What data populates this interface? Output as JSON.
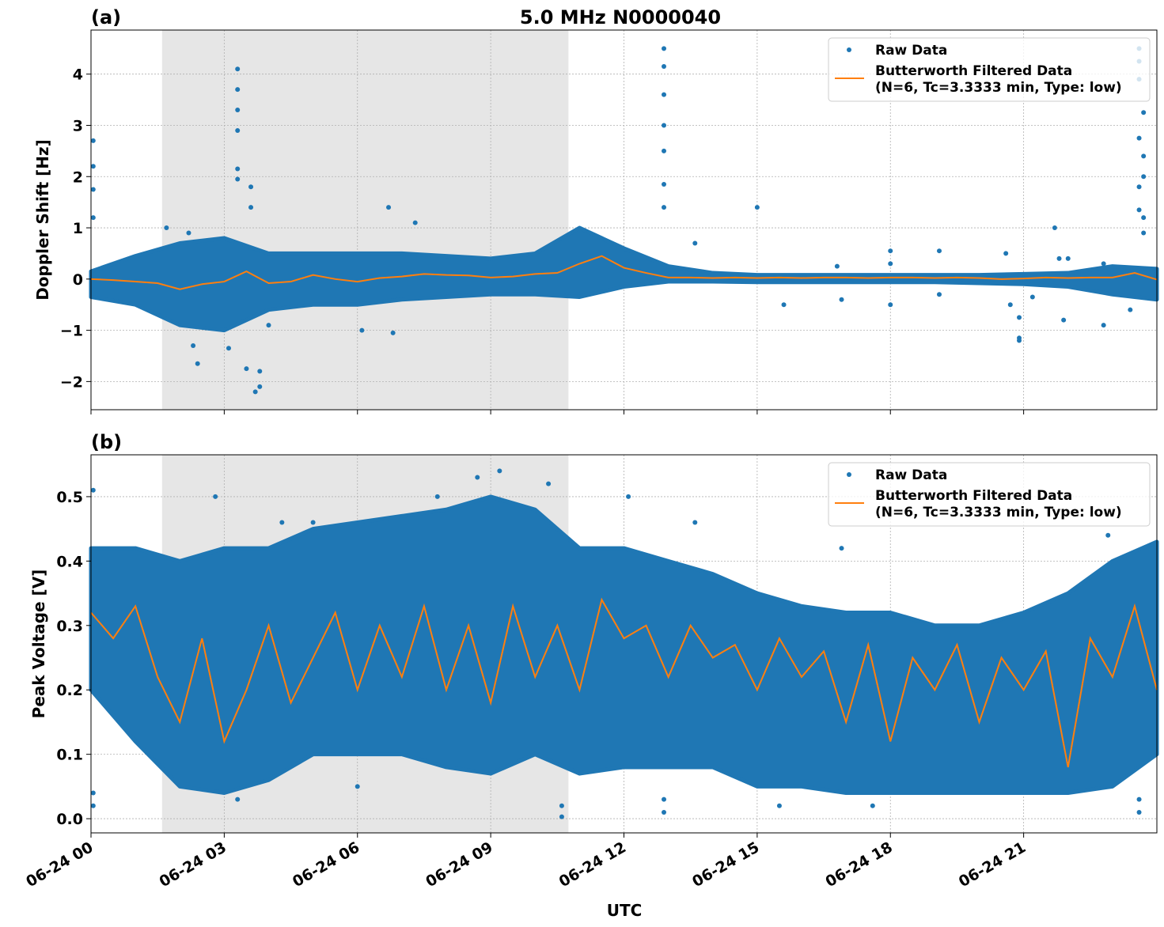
{
  "chart_data": [
    {
      "type": "scatter",
      "panel_label": "(a)",
      "title": "5.0 MHz N0000040",
      "xlabel": "",
      "ylabel": "Doppler Shift [Hz]",
      "xlim_hours": [
        0,
        24
      ],
      "ylim": [
        -2.55,
        4.86
      ],
      "yticks": [
        -2,
        -1,
        0,
        1,
        2,
        3,
        4
      ],
      "ytick_labels": [
        "−2",
        "−1",
        "0",
        "1",
        "2",
        "3",
        "4"
      ],
      "grid": true,
      "shaded_interval_hours": [
        1.6,
        10.75
      ],
      "legend": {
        "position": "top-right",
        "entries": [
          "Raw Data",
          "Butterworth Filtered Data",
          "(N=6, Tc=3.3333 min, Type: low)"
        ]
      },
      "raw_envelope": {
        "hours": [
          0,
          1,
          2,
          3,
          4,
          5,
          6,
          7,
          8,
          9,
          10,
          11,
          12,
          13,
          14,
          15,
          16,
          17,
          18,
          19,
          20,
          21,
          22,
          23,
          24
        ],
        "low": [
          -0.35,
          -0.5,
          -0.9,
          -1.0,
          -0.6,
          -0.5,
          -0.5,
          -0.4,
          -0.35,
          -0.3,
          -0.3,
          -0.35,
          -0.15,
          -0.05,
          -0.05,
          -0.06,
          -0.06,
          -0.06,
          -0.06,
          -0.06,
          -0.08,
          -0.1,
          -0.15,
          -0.3,
          -0.4
        ],
        "high": [
          0.15,
          0.45,
          0.7,
          0.8,
          0.5,
          0.5,
          0.5,
          0.5,
          0.45,
          0.4,
          0.5,
          1.0,
          0.6,
          0.25,
          0.12,
          0.08,
          0.08,
          0.08,
          0.08,
          0.08,
          0.08,
          0.1,
          0.12,
          0.25,
          0.2
        ]
      },
      "raw_outliers": [
        [
          0.05,
          2.7
        ],
        [
          0.05,
          2.2
        ],
        [
          0.05,
          1.75
        ],
        [
          0.05,
          1.2
        ],
        [
          3.3,
          4.1
        ],
        [
          3.3,
          3.7
        ],
        [
          3.3,
          3.3
        ],
        [
          3.3,
          2.9
        ],
        [
          3.3,
          2.15
        ],
        [
          3.3,
          1.95
        ],
        [
          3.6,
          1.8
        ],
        [
          3.6,
          1.4
        ],
        [
          2.4,
          -1.65
        ],
        [
          3.5,
          -1.75
        ],
        [
          3.7,
          -2.2
        ],
        [
          3.8,
          -2.1
        ],
        [
          3.8,
          -1.8
        ],
        [
          12.9,
          4.5
        ],
        [
          12.9,
          4.15
        ],
        [
          12.9,
          3.6
        ],
        [
          12.9,
          3.0
        ],
        [
          12.9,
          2.5
        ],
        [
          12.9,
          1.85
        ],
        [
          12.9,
          1.4
        ],
        [
          15,
          1.4
        ],
        [
          6.7,
          1.4
        ],
        [
          7.3,
          1.1
        ],
        [
          23.6,
          4.5
        ],
        [
          23.6,
          4.25
        ],
        [
          23.6,
          3.9
        ],
        [
          23.7,
          3.25
        ],
        [
          23.6,
          2.75
        ],
        [
          23.7,
          2.4
        ],
        [
          23.7,
          2.0
        ],
        [
          23.6,
          1.8
        ],
        [
          23.6,
          1.35
        ],
        [
          23.7,
          1.2
        ],
        [
          23.7,
          0.9
        ],
        [
          20.9,
          -0.75
        ],
        [
          20.9,
          -1.2
        ],
        [
          20.9,
          -1.15
        ],
        [
          22.8,
          0.3
        ],
        [
          22.8,
          -0.9
        ],
        [
          21.7,
          1.0
        ],
        [
          21.8,
          0.4
        ],
        [
          18,
          0.55
        ],
        [
          18,
          0.3
        ],
        [
          18,
          -0.5
        ],
        [
          19.1,
          0.55
        ],
        [
          19.1,
          -0.3
        ],
        [
          16.8,
          0.25
        ],
        [
          16.9,
          -0.4
        ],
        [
          15.6,
          -0.5
        ],
        [
          20.6,
          0.5
        ],
        [
          20.7,
          -0.5
        ],
        [
          21.2,
          -0.35
        ],
        [
          13.6,
          0.7
        ],
        [
          6.1,
          -1.0
        ],
        [
          6.8,
          -1.05
        ],
        [
          22,
          0.4
        ],
        [
          21.9,
          -0.8
        ],
        [
          23.4,
          -0.6
        ],
        [
          2.3,
          -1.3
        ],
        [
          3.1,
          -1.35
        ],
        [
          4.0,
          -0.9
        ],
        [
          1.7,
          1.0
        ],
        [
          2.2,
          0.9
        ]
      ],
      "filtered": {
        "hours": [
          0,
          0.5,
          1,
          1.5,
          2,
          2.5,
          3,
          3.5,
          4,
          4.5,
          5,
          5.5,
          6,
          6.5,
          7,
          7.5,
          8,
          8.5,
          9,
          9.5,
          10,
          10.5,
          11,
          11.5,
          12,
          12.5,
          13,
          13.5,
          14,
          14.5,
          15,
          15.5,
          16,
          16.5,
          17,
          17.5,
          18,
          18.5,
          19,
          19.5,
          20,
          20.5,
          21,
          21.5,
          22,
          22.5,
          23,
          23.5,
          24
        ],
        "values": [
          0,
          -0.02,
          -0.05,
          -0.08,
          -0.2,
          -0.1,
          -0.05,
          0.15,
          -0.08,
          -0.05,
          0.08,
          0.0,
          -0.05,
          0.02,
          0.05,
          0.1,
          0.08,
          0.07,
          0.03,
          0.05,
          0.1,
          0.12,
          0.3,
          0.45,
          0.22,
          0.12,
          0.03,
          0.03,
          0.02,
          0.03,
          0.02,
          0.03,
          0.02,
          0.03,
          0.03,
          0.02,
          0.03,
          0.03,
          0.02,
          0.03,
          0.02,
          0.0,
          0.01,
          0.03,
          0.02,
          0.03,
          0.03,
          0.12,
          -0.01
        ]
      }
    },
    {
      "type": "scatter",
      "panel_label": "(b)",
      "xlabel": "UTC",
      "ylabel": "Peak Voltage [V]",
      "xlim_hours": [
        0,
        24
      ],
      "ylim": [
        -0.022,
        0.565
      ],
      "yticks": [
        0.0,
        0.1,
        0.2,
        0.3,
        0.4,
        0.5
      ],
      "ytick_labels": [
        "0.0",
        "0.1",
        "0.2",
        "0.3",
        "0.4",
        "0.5"
      ],
      "xtick_hours": [
        0,
        3,
        6,
        9,
        12,
        15,
        18,
        21
      ],
      "xtick_labels": [
        "06-24 00",
        "06-24 03",
        "06-24 06",
        "06-24 09",
        "06-24 12",
        "06-24 15",
        "06-24 18",
        "06-24 21"
      ],
      "grid": true,
      "shaded_interval_hours": [
        1.6,
        10.75
      ],
      "legend": {
        "position": "top-right",
        "entries": [
          "Raw Data",
          "Butterworth Filtered Data",
          "(N=6, Tc=3.3333 min, Type: low)"
        ]
      },
      "raw_envelope": {
        "hours": [
          0,
          1,
          2,
          3,
          4,
          5,
          6,
          7,
          8,
          9,
          10,
          11,
          12,
          13,
          14,
          15,
          16,
          17,
          18,
          19,
          20,
          21,
          22,
          23,
          24
        ],
        "low": [
          0.2,
          0.12,
          0.05,
          0.04,
          0.06,
          0.1,
          0.1,
          0.1,
          0.08,
          0.07,
          0.1,
          0.07,
          0.08,
          0.08,
          0.08,
          0.05,
          0.05,
          0.04,
          0.04,
          0.04,
          0.04,
          0.04,
          0.04,
          0.05,
          0.1
        ],
        "high": [
          0.42,
          0.42,
          0.4,
          0.42,
          0.42,
          0.45,
          0.46,
          0.47,
          0.48,
          0.5,
          0.48,
          0.42,
          0.42,
          0.4,
          0.38,
          0.35,
          0.33,
          0.32,
          0.32,
          0.3,
          0.3,
          0.32,
          0.35,
          0.4,
          0.43
        ]
      },
      "raw_outliers": [
        [
          0.05,
          0.51
        ],
        [
          0.05,
          0.02
        ],
        [
          0.05,
          0.04
        ],
        [
          10.3,
          0.52
        ],
        [
          9.2,
          0.54
        ],
        [
          8.7,
          0.53
        ],
        [
          10.6,
          0.003
        ],
        [
          10.6,
          0.02
        ],
        [
          12.9,
          0.01
        ],
        [
          12.9,
          0.03
        ],
        [
          12.1,
          0.5
        ],
        [
          23.6,
          0.01
        ],
        [
          23.6,
          0.03
        ],
        [
          6,
          0.05
        ],
        [
          5,
          0.46
        ],
        [
          3.3,
          0.03
        ],
        [
          22.9,
          0.44
        ],
        [
          2.8,
          0.5
        ],
        [
          4.3,
          0.46
        ],
        [
          7.8,
          0.5
        ],
        [
          13.6,
          0.46
        ],
        [
          16.9,
          0.42
        ],
        [
          15.5,
          0.02
        ],
        [
          17.6,
          0.02
        ]
      ],
      "filtered": {
        "hours": [
          0,
          0.5,
          1,
          1.5,
          2,
          2.5,
          3,
          3.5,
          4,
          4.5,
          5,
          5.5,
          6,
          6.5,
          7,
          7.5,
          8,
          8.5,
          9,
          9.5,
          10,
          10.5,
          11,
          11.5,
          12,
          12.5,
          13,
          13.5,
          14,
          14.5,
          15,
          15.5,
          16,
          16.5,
          17,
          17.5,
          18,
          18.5,
          19,
          19.5,
          20,
          20.5,
          21,
          21.5,
          22,
          22.5,
          23,
          23.5,
          24
        ],
        "values": [
          0.32,
          0.28,
          0.33,
          0.22,
          0.15,
          0.28,
          0.12,
          0.2,
          0.3,
          0.18,
          0.25,
          0.32,
          0.2,
          0.3,
          0.22,
          0.33,
          0.2,
          0.3,
          0.18,
          0.33,
          0.22,
          0.3,
          0.2,
          0.34,
          0.28,
          0.3,
          0.22,
          0.3,
          0.25,
          0.27,
          0.2,
          0.28,
          0.22,
          0.26,
          0.15,
          0.27,
          0.12,
          0.25,
          0.2,
          0.27,
          0.15,
          0.25,
          0.2,
          0.26,
          0.08,
          0.28,
          0.22,
          0.33,
          0.2
        ]
      }
    }
  ],
  "colors": {
    "raw": "#1f77b4",
    "filtered": "#ff7f0e",
    "shade": "#e6e6e6"
  }
}
